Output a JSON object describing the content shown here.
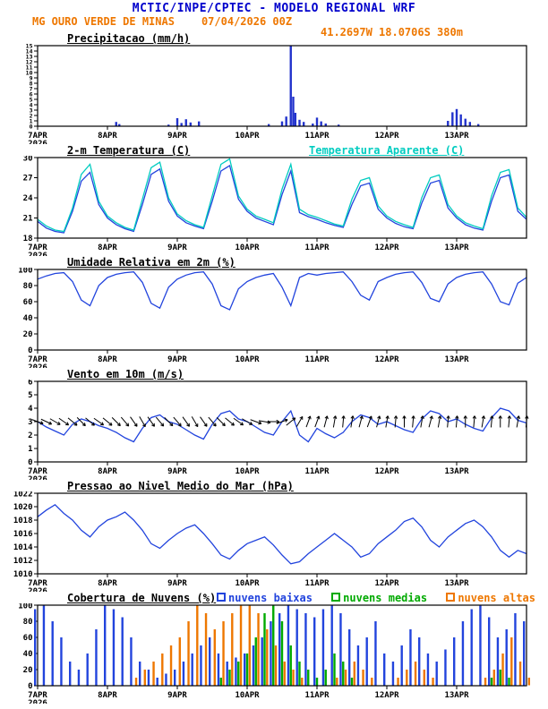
{
  "header": {
    "title": "MCTIC/INPE/CPTEC - MODELO REGIONAL WRF",
    "station": "MG OURO VERDE DE MINAS",
    "run_datetime": "07/04/2026 00Z",
    "location": "41.2697W 18.0706S 380m",
    "title_color": "#0000cc",
    "station_color": "#ee7700"
  },
  "x_axis": {
    "xlim": [
      0,
      7
    ],
    "ticks": [
      0,
      1,
      2,
      3,
      4,
      5,
      6
    ],
    "tick_labels": [
      "7APR",
      "8APR",
      "9APR",
      "10APR",
      "11APR",
      "12APR",
      "13APR"
    ],
    "year_label": "2026"
  },
  "chart_data": [
    {
      "id": "precipitation",
      "type": "bar",
      "title": "Precipitacao (mm/h)",
      "ylabel": "mm/h",
      "ylim": [
        0,
        15
      ],
      "yticks": [
        0,
        1,
        2,
        3,
        4,
        5,
        6,
        7,
        8,
        9,
        10,
        11,
        12,
        13,
        14,
        15
      ],
      "bar_color": "#2233cc",
      "x": [
        1.125,
        1.17,
        1.875,
        2.0,
        2.06,
        2.125,
        2.19,
        2.31,
        3.31,
        3.5,
        3.56,
        3.625,
        3.66,
        3.69,
        3.75,
        3.81,
        3.94,
        4.0,
        4.06,
        4.125,
        4.31,
        5.875,
        5.94,
        6.0,
        6.06,
        6.125,
        6.19,
        6.31
      ],
      "values": [
        0.8,
        0.4,
        0.3,
        1.5,
        0.6,
        1.3,
        0.7,
        0.9,
        0.4,
        0.9,
        1.8,
        15,
        5.5,
        2.5,
        1.2,
        0.8,
        0.5,
        1.6,
        0.9,
        0.5,
        0.3,
        1.0,
        2.6,
        3.2,
        2.2,
        1.4,
        0.8,
        0.4
      ]
    },
    {
      "id": "temperature",
      "type": "line",
      "title": "2-m Temperatura (C)",
      "ylabel": "C",
      "ylim": [
        18,
        30
      ],
      "yticks": [
        18,
        21,
        24,
        27,
        30
      ],
      "x_start": 0,
      "x_step": 0.125,
      "series": [
        {
          "name": "2-m Temperatura (C)",
          "color": "#2244dd",
          "values": [
            20.5,
            19.5,
            19.0,
            18.8,
            22.0,
            26.5,
            27.8,
            23.0,
            21.0,
            20.0,
            19.4,
            19.0,
            23.0,
            27.5,
            28.3,
            23.5,
            21.3,
            20.3,
            19.8,
            19.4,
            23.5,
            28.0,
            28.8,
            23.8,
            22.0,
            21.0,
            20.5,
            20.0,
            24.5,
            28.0,
            21.8,
            21.2,
            20.8,
            20.3,
            19.9,
            19.6,
            23.0,
            25.8,
            26.2,
            22.3,
            21.0,
            20.2,
            19.7,
            19.4,
            23.2,
            26.2,
            26.6,
            22.5,
            21.0,
            20.0,
            19.5,
            19.2,
            23.5,
            27.0,
            27.4,
            22.0,
            20.8
          ]
        },
        {
          "name": "Temperatura Aparente (C)",
          "color": "#00ccc0",
          "values": [
            20.8,
            19.8,
            19.2,
            19.0,
            22.5,
            27.5,
            29.0,
            23.5,
            21.3,
            20.3,
            19.6,
            19.2,
            23.8,
            28.5,
            29.3,
            24.0,
            21.6,
            20.6,
            20.0,
            19.6,
            24.3,
            29.0,
            29.8,
            24.3,
            22.3,
            21.3,
            20.8,
            20.3,
            25.3,
            29.0,
            22.3,
            21.5,
            21.1,
            20.6,
            20.1,
            19.8,
            23.8,
            26.6,
            27.0,
            22.8,
            21.3,
            20.5,
            20.0,
            19.6,
            24.0,
            27.0,
            27.4,
            23.0,
            21.3,
            20.3,
            19.8,
            19.4,
            24.3,
            27.8,
            28.2,
            22.5,
            21.1
          ]
        }
      ]
    },
    {
      "id": "humidity",
      "type": "line",
      "title": "Umidade Relativa em 2m (%)",
      "ylabel": "%",
      "ylim": [
        0,
        100
      ],
      "yticks": [
        0,
        20,
        40,
        60,
        80,
        100
      ],
      "x_start": 0,
      "x_step": 0.125,
      "series": [
        {
          "name": "Umidade Relativa em 2m",
          "color": "#2244dd",
          "values": [
            88,
            92,
            95,
            96,
            85,
            62,
            55,
            80,
            90,
            94,
            96,
            97,
            84,
            58,
            52,
            78,
            88,
            93,
            96,
            97,
            82,
            55,
            50,
            76,
            85,
            90,
            93,
            95,
            78,
            55,
            90,
            95,
            93,
            95,
            96,
            97,
            85,
            68,
            62,
            85,
            90,
            94,
            96,
            97,
            84,
            64,
            60,
            82,
            90,
            94,
            96,
            97,
            82,
            60,
            56,
            83,
            90
          ]
        }
      ]
    },
    {
      "id": "wind",
      "type": "line",
      "title": "Vento em 10m (m/s)",
      "ylabel": "m/s",
      "ylim": [
        0,
        6
      ],
      "yticks": [
        0,
        1,
        2,
        3,
        4,
        5,
        6
      ],
      "x_start": 0,
      "x_step": 0.125,
      "series": [
        {
          "name": "Velocidade do vento em 10m",
          "color": "#2244dd",
          "values": [
            3.0,
            2.6,
            2.3,
            2.0,
            2.8,
            3.2,
            3.0,
            2.7,
            2.5,
            2.2,
            1.8,
            1.5,
            2.5,
            3.3,
            3.5,
            3.0,
            2.8,
            2.4,
            2.0,
            1.7,
            2.8,
            3.6,
            3.8,
            3.2,
            3.0,
            2.6,
            2.2,
            2.0,
            3.0,
            3.8,
            2.0,
            1.5,
            2.5,
            2.1,
            1.8,
            2.2,
            3.0,
            3.5,
            3.3,
            2.8,
            3.0,
            2.7,
            2.4,
            2.2,
            3.2,
            3.8,
            3.6,
            3.0,
            3.2,
            2.8,
            2.5,
            2.3,
            3.3,
            4.0,
            3.8,
            3.1,
            2.9
          ]
        }
      ],
      "barbs": {
        "name": "vetores de direcao do vento",
        "y": 3,
        "color": "#000000",
        "x_start": 0,
        "x_step": 0.125,
        "angles_deg": [
          -20,
          -25,
          -30,
          -35,
          -40,
          -45,
          -40,
          -35,
          -40,
          -45,
          -50,
          -55,
          -60,
          -55,
          -50,
          -45,
          -50,
          -55,
          -60,
          -55,
          -50,
          -45,
          -40,
          -35,
          -30,
          -20,
          -10,
          0,
          20,
          40,
          60,
          70,
          70,
          75,
          80,
          85,
          80,
          75,
          70,
          75,
          80,
          85,
          90,
          85,
          80,
          75,
          80,
          85,
          85,
          90,
          85,
          80,
          85,
          90,
          85,
          80,
          85
        ]
      }
    },
    {
      "id": "pressure",
      "type": "line",
      "title": "Pressao ao Nivel Medio do Mar (hPa)",
      "ylabel": "hPa",
      "ylim": [
        1010,
        1022
      ],
      "yticks": [
        1010,
        1012,
        1014,
        1016,
        1018,
        1020,
        1022
      ],
      "x_start": 0,
      "x_step": 0.125,
      "series": [
        {
          "name": "Pressao ao nivel medio do mar",
          "color": "#2244dd",
          "values": [
            1018.5,
            1019.5,
            1020.3,
            1019.0,
            1018.0,
            1016.5,
            1015.5,
            1017.0,
            1018.0,
            1018.5,
            1019.2,
            1018.0,
            1016.5,
            1014.5,
            1013.8,
            1015.0,
            1016.0,
            1016.8,
            1017.3,
            1016.0,
            1014.5,
            1012.8,
            1012.2,
            1013.5,
            1014.5,
            1015.0,
            1015.5,
            1014.3,
            1012.8,
            1011.5,
            1011.8,
            1013.0,
            1014.0,
            1015.0,
            1016.0,
            1015.0,
            1014.0,
            1012.5,
            1013.0,
            1014.5,
            1015.5,
            1016.5,
            1017.8,
            1018.3,
            1017.0,
            1015.0,
            1014.0,
            1015.5,
            1016.5,
            1017.5,
            1018.0,
            1017.0,
            1015.5,
            1013.5,
            1012.5,
            1013.5,
            1013.0
          ]
        }
      ]
    },
    {
      "id": "clouds",
      "type": "bar-multi",
      "title": "Cobertura de Nuvens (%)",
      "ylabel": "%",
      "ylim": [
        0,
        100
      ],
      "yticks": [
        0,
        20,
        40,
        60,
        80,
        100
      ],
      "x_start": 0,
      "x_step": 0.125,
      "series": [
        {
          "name": "nuvens baixas",
          "color": "#2244dd",
          "values": [
            95,
            100,
            80,
            60,
            30,
            20,
            40,
            70,
            100,
            95,
            85,
            60,
            30,
            20,
            10,
            15,
            20,
            30,
            40,
            50,
            60,
            40,
            30,
            35,
            40,
            50,
            60,
            80,
            90,
            100,
            95,
            90,
            85,
            95,
            100,
            90,
            70,
            50,
            60,
            80,
            40,
            30,
            50,
            70,
            60,
            40,
            30,
            45,
            60,
            80,
            95,
            100,
            85,
            60,
            70,
            90,
            80
          ]
        },
        {
          "name": "nuvens medias",
          "color": "#00aa00",
          "values": [
            0,
            0,
            0,
            0,
            0,
            0,
            0,
            0,
            0,
            0,
            0,
            0,
            0,
            0,
            0,
            0,
            0,
            0,
            0,
            0,
            0,
            10,
            20,
            30,
            40,
            60,
            90,
            100,
            80,
            50,
            30,
            20,
            10,
            20,
            40,
            30,
            10,
            0,
            0,
            0,
            0,
            0,
            0,
            0,
            0,
            0,
            0,
            0,
            0,
            0,
            0,
            0,
            10,
            20,
            10,
            0,
            0
          ]
        },
        {
          "name": "nuvens altas",
          "color": "#ee7700",
          "values": [
            0,
            0,
            0,
            0,
            0,
            0,
            0,
            0,
            0,
            0,
            0,
            10,
            20,
            30,
            40,
            50,
            60,
            80,
            100,
            90,
            70,
            80,
            90,
            100,
            100,
            90,
            70,
            50,
            30,
            20,
            10,
            0,
            0,
            0,
            10,
            20,
            30,
            20,
            10,
            0,
            0,
            10,
            20,
            30,
            20,
            10,
            0,
            0,
            0,
            0,
            0,
            10,
            20,
            40,
            60,
            30,
            10
          ]
        }
      ]
    }
  ]
}
